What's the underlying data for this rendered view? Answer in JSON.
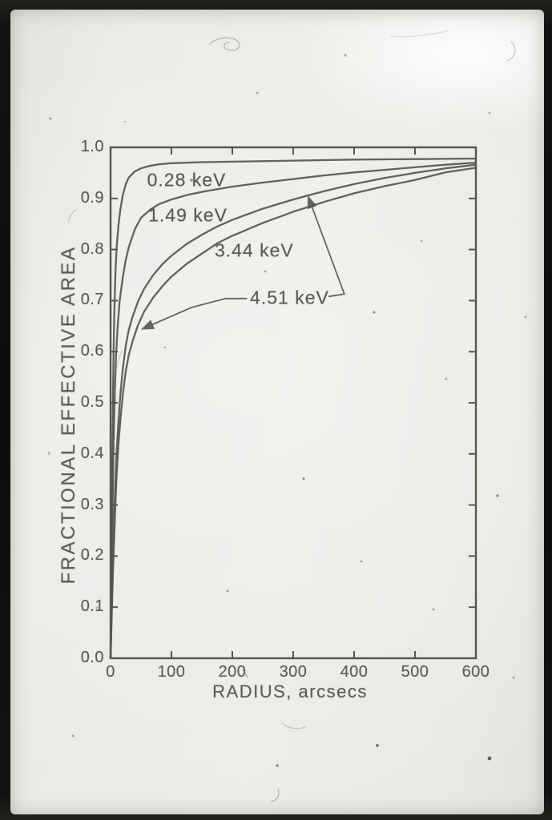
{
  "figure": {
    "description": "Photographed scientific plot of fractional effective area versus radius for four X-ray energies",
    "ink_color": "#56554e",
    "paper_color": "#eae9e5"
  },
  "chart_data": {
    "type": "line",
    "title": "",
    "xlabel": "RADIUS, arcsecs",
    "ylabel": "FRACTIONAL EFFECTIVE AREA",
    "xlim": [
      0,
      600
    ],
    "ylim": [
      0.0,
      1.0
    ],
    "grid": false,
    "frame": "box with inward ticks on all four sides",
    "legend_position": "inline curve labels",
    "x_ticks": [
      0,
      100,
      200,
      300,
      400,
      500,
      600
    ],
    "x_tick_labels": [
      "0",
      "100",
      "200",
      "300",
      "400",
      "500",
      "600"
    ],
    "y_ticks": [
      0.0,
      0.1,
      0.2,
      0.3,
      0.4,
      0.5,
      0.6,
      0.7,
      0.8,
      0.9,
      1.0
    ],
    "y_tick_labels": [
      "0.0",
      "0.1",
      "0.2",
      "0.3",
      "0.4",
      "0.5",
      "0.6",
      "0.7",
      "0.8",
      "0.9",
      "1.0"
    ],
    "series": [
      {
        "name": "0.28 keV",
        "x": [
          0,
          1,
          2,
          3,
          4,
          5,
          6,
          8,
          10,
          13,
          16,
          20,
          25,
          30,
          40,
          50,
          65,
          80,
          100,
          150,
          200,
          300,
          400,
          500,
          600
        ],
        "y": [
          0,
          0.13,
          0.27,
          0.4,
          0.51,
          0.6,
          0.67,
          0.755,
          0.805,
          0.848,
          0.878,
          0.906,
          0.928,
          0.941,
          0.953,
          0.959,
          0.964,
          0.967,
          0.969,
          0.971,
          0.972,
          0.974,
          0.976,
          0.977,
          0.978
        ]
      },
      {
        "name": "1.49 keV",
        "x": [
          0,
          1,
          2,
          3,
          5,
          7,
          9,
          12,
          15,
          20,
          25,
          30,
          40,
          50,
          65,
          80,
          100,
          130,
          160,
          200,
          250,
          300,
          350,
          400,
          450,
          500,
          550,
          600
        ],
        "y": [
          0,
          0.09,
          0.19,
          0.28,
          0.42,
          0.52,
          0.59,
          0.655,
          0.7,
          0.745,
          0.78,
          0.805,
          0.84,
          0.862,
          0.878,
          0.889,
          0.898,
          0.908,
          0.915,
          0.923,
          0.931,
          0.938,
          0.945,
          0.951,
          0.956,
          0.961,
          0.966,
          0.97
        ]
      },
      {
        "name": "3.44 keV",
        "x": [
          0,
          2,
          4,
          6,
          8,
          10,
          13,
          16,
          20,
          25,
          30,
          36,
          45,
          55,
          70,
          85,
          100,
          125,
          150,
          175,
          200,
          250,
          300,
          350,
          400,
          450,
          500,
          550,
          600
        ],
        "y": [
          0,
          0.1,
          0.2,
          0.28,
          0.35,
          0.405,
          0.465,
          0.515,
          0.565,
          0.612,
          0.643,
          0.668,
          0.698,
          0.723,
          0.75,
          0.771,
          0.788,
          0.811,
          0.829,
          0.845,
          0.858,
          0.88,
          0.898,
          0.914,
          0.928,
          0.94,
          0.95,
          0.959,
          0.966
        ]
      },
      {
        "name": "4.51 keV",
        "x": [
          0,
          2,
          4,
          6,
          8,
          10,
          13,
          16,
          20,
          25,
          30,
          36,
          45,
          55,
          70,
          85,
          100,
          125,
          150,
          175,
          200,
          250,
          300,
          350,
          400,
          450,
          500,
          550,
          600
        ],
        "y": [
          0,
          0.085,
          0.17,
          0.24,
          0.305,
          0.36,
          0.42,
          0.465,
          0.515,
          0.562,
          0.594,
          0.62,
          0.652,
          0.678,
          0.706,
          0.728,
          0.747,
          0.772,
          0.792,
          0.812,
          0.827,
          0.852,
          0.874,
          0.893,
          0.91,
          0.924,
          0.936,
          0.951,
          0.96
        ]
      }
    ],
    "curve_labels": [
      {
        "text": "0.28 keV",
        "x": 125,
        "y": 0.936
      },
      {
        "text": "1.49 keV",
        "x": 127,
        "y": 0.867
      },
      {
        "text": "3.44 keV",
        "x": 236,
        "y": 0.798
      },
      {
        "text": "4.51 keV",
        "x": 294,
        "y": 0.705
      }
    ],
    "annotation_arrows": [
      {
        "name": "arrow-to-4.51-curve-lower-left",
        "points_x": [
          224,
          189,
          134,
          53
        ],
        "points_y": [
          0.704,
          0.704,
          0.687,
          0.645
        ]
      },
      {
        "name": "arrow-to-4.51-curve-upper-right",
        "points_x": [
          358,
          384,
          325
        ],
        "points_y": [
          0.708,
          0.713,
          0.902
        ]
      }
    ]
  }
}
